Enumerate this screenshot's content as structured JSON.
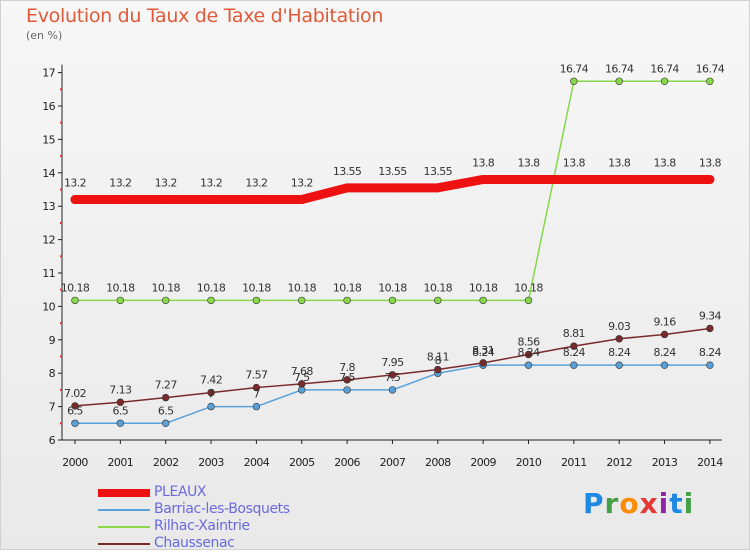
{
  "title": "Evolution du Taux de Taxe d'Habitation",
  "unit": "(en %)",
  "logo": {
    "letters": [
      "P",
      "r",
      "o",
      "x",
      "i",
      "t",
      "i"
    ],
    "colors": [
      "#1e88e5",
      "#43a047",
      "#fb8c00",
      "#e53935",
      "#8e24aa",
      "#1e88e5",
      "#43a047"
    ]
  },
  "chart_data": {
    "type": "line",
    "x": [
      2000,
      2001,
      2002,
      2003,
      2004,
      2005,
      2006,
      2007,
      2008,
      2009,
      2010,
      2011,
      2012,
      2013,
      2014
    ],
    "ylim": [
      6,
      17
    ],
    "yticks": [
      6,
      7,
      8,
      9,
      10,
      11,
      12,
      13,
      14,
      15,
      16,
      17
    ],
    "grid": false,
    "legend_position": "bottom-left",
    "series": [
      {
        "name": "PLEAUX",
        "color": "#ee1111",
        "width": 9,
        "marker": false,
        "values": [
          13.2,
          13.2,
          13.2,
          13.2,
          13.2,
          13.2,
          13.55,
          13.55,
          13.55,
          13.8,
          13.8,
          13.8,
          13.8,
          13.8,
          13.8
        ],
        "labels": [
          "13.2",
          "13.2",
          "13.2",
          "13.2",
          "13.2",
          "13.2",
          "13.55",
          "13.55",
          "13.55",
          "13.8",
          "13.8",
          "13.8",
          "13.8",
          "13.8",
          "13.8"
        ]
      },
      {
        "name": "Barriac-les-Bosquets",
        "color": "#5aa0d8",
        "width": 1.5,
        "marker": true,
        "values": [
          6.5,
          6.5,
          6.5,
          7,
          7,
          7.5,
          7.5,
          7.5,
          8,
          8.24,
          8.24,
          8.24,
          8.24,
          8.24,
          8.24
        ],
        "labels": [
          "6.5",
          "6.5",
          "6.5",
          "7",
          "7",
          "7.5",
          "7.5",
          "7.5",
          "8",
          "8.24",
          "8.24",
          "8.24",
          "8.24",
          "8.24",
          "8.24"
        ]
      },
      {
        "name": "Rilhac-Xaintrie",
        "color": "#88d84a",
        "width": 1.5,
        "marker": true,
        "values": [
          10.18,
          10.18,
          10.18,
          10.18,
          10.18,
          10.18,
          10.18,
          10.18,
          10.18,
          10.18,
          10.18,
          16.74,
          16.74,
          16.74,
          16.74
        ],
        "labels": [
          "10.18",
          "10.18",
          "10.18",
          "10.18",
          "10.18",
          "10.18",
          "10.18",
          "10.18",
          "10.18",
          "10.18",
          "10.18",
          "16.74",
          "16.74",
          "16.74",
          "16.74"
        ]
      },
      {
        "name": "Chaussenac",
        "color": "#7a2a2a",
        "width": 1.5,
        "marker": true,
        "values": [
          7.02,
          7.13,
          7.27,
          7.42,
          7.57,
          7.68,
          7.8,
          7.95,
          8.11,
          8.31,
          8.56,
          8.81,
          9.03,
          9.16,
          9.34
        ],
        "labels": [
          "7.02",
          "7.13",
          "7.27",
          "7.42",
          "7.57",
          "7.68",
          "7.8",
          "7.95",
          "8.11",
          "8.31",
          "8.56",
          "8.81",
          "9.03",
          "9.16",
          "9.34"
        ]
      }
    ]
  }
}
